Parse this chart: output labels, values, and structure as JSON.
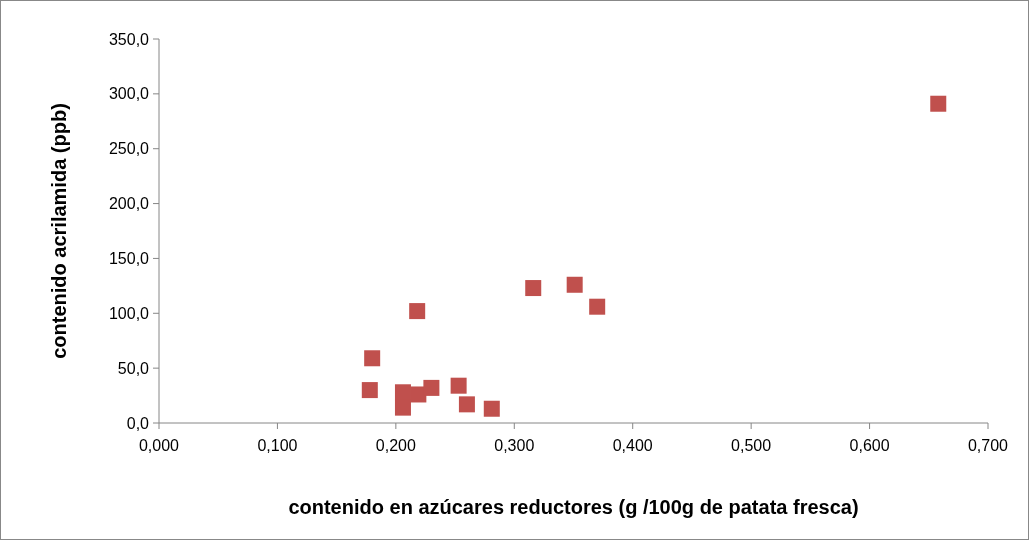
{
  "chart_data": {
    "type": "scatter",
    "xlabel": "contenido en azúcares reductores (g /100g de patata fresca)",
    "ylabel": "contenido acrilamida (ppb)",
    "x": [
      0.18,
      0.178,
      0.218,
      0.206,
      0.206,
      0.219,
      0.23,
      0.253,
      0.26,
      0.281,
      0.316,
      0.351,
      0.37,
      0.658
    ],
    "series": [
      {
        "color": "#c0504d",
        "values": [
          59,
          30,
          102,
          28,
          14,
          26,
          32,
          34,
          17,
          13,
          123,
          126,
          106,
          291
        ]
      }
    ],
    "marker": "square",
    "grid": false,
    "xlim": [
      0,
      0.7
    ],
    "xticks": [
      {
        "value": 0,
        "label": "0,000"
      },
      {
        "value": 0.1,
        "label": "0,100"
      },
      {
        "value": 0.2,
        "label": "0,200"
      },
      {
        "value": 0.3,
        "label": "0,300"
      },
      {
        "value": 0.4,
        "label": "0,400"
      },
      {
        "value": 0.5,
        "label": "0,500"
      },
      {
        "value": 0.6,
        "label": "0,600"
      },
      {
        "value": 0.7,
        "label": "0,700"
      }
    ],
    "ylim": [
      0,
      350
    ],
    "yticks": [
      {
        "value": 0,
        "label": "0,0"
      },
      {
        "value": 50,
        "label": "50,0"
      },
      {
        "value": 100,
        "label": "100,0"
      },
      {
        "value": 150,
        "label": "150,0"
      },
      {
        "value": 200,
        "label": "200,0"
      },
      {
        "value": 250,
        "label": "250,0"
      },
      {
        "value": 300,
        "label": "300,0"
      },
      {
        "value": 350,
        "label": "350,0"
      }
    ]
  }
}
